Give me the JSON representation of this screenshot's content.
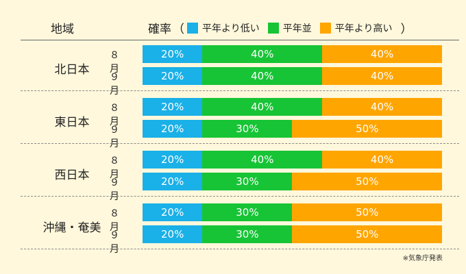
{
  "header": {
    "region_label": "地域",
    "prob_label": "確率",
    "paren_open": "（",
    "paren_close": "）"
  },
  "colors": {
    "below": "#1ab0e8",
    "normal": "#17c435",
    "above": "#ffa500"
  },
  "chart_data": {
    "type": "bar",
    "orientation": "horizontal-stacked-100",
    "series": [
      {
        "name": "平年より低い",
        "color": "#1ab0e8"
      },
      {
        "name": "平年並",
        "color": "#17c435"
      },
      {
        "name": "平年より高い",
        "color": "#ffa500"
      }
    ],
    "regions": [
      {
        "name": "北日本",
        "rows": [
          {
            "month": "８月",
            "values": [
              20,
              40,
              40
            ]
          },
          {
            "month": "９月",
            "values": [
              20,
              40,
              40
            ]
          }
        ]
      },
      {
        "name": "東日本",
        "rows": [
          {
            "month": "８月",
            "values": [
              20,
              40,
              40
            ]
          },
          {
            "month": "９月",
            "values": [
              20,
              30,
              50
            ]
          }
        ]
      },
      {
        "name": "西日本",
        "rows": [
          {
            "month": "８月",
            "values": [
              20,
              40,
              40
            ]
          },
          {
            "month": "９月",
            "values": [
              20,
              30,
              50
            ]
          }
        ]
      },
      {
        "name": "沖縄・奄美",
        "rows": [
          {
            "month": "８月",
            "values": [
              20,
              30,
              50
            ]
          },
          {
            "month": "９月",
            "values": [
              20,
              30,
              50
            ]
          }
        ]
      }
    ],
    "unit": "%"
  },
  "footer": {
    "source": "※気象庁発表"
  }
}
